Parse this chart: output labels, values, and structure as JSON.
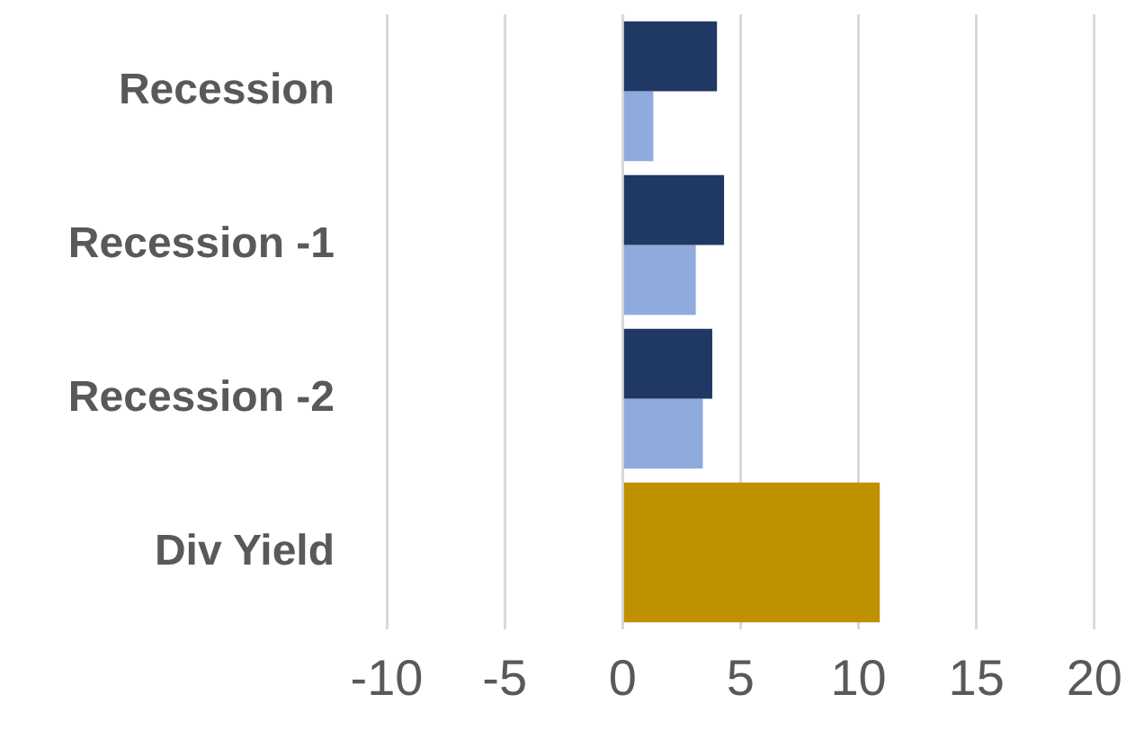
{
  "chart_data": {
    "type": "bar",
    "orientation": "horizontal",
    "categories": [
      "Recession",
      "Recession -1",
      "Recession -2",
      "Div Yield"
    ],
    "series": [
      {
        "color": "#1f3864",
        "values": [
          4.0,
          4.3,
          3.8,
          null
        ]
      },
      {
        "color": "#8faadc",
        "values": [
          1.3,
          3.1,
          3.4,
          null
        ]
      },
      {
        "color": "#bf9000",
        "values": [
          null,
          null,
          null,
          10.9
        ]
      }
    ],
    "xlim": [
      -10,
      20
    ],
    "xticks": [
      -10,
      -5,
      0,
      5,
      10,
      15,
      20
    ],
    "grid": "x"
  }
}
